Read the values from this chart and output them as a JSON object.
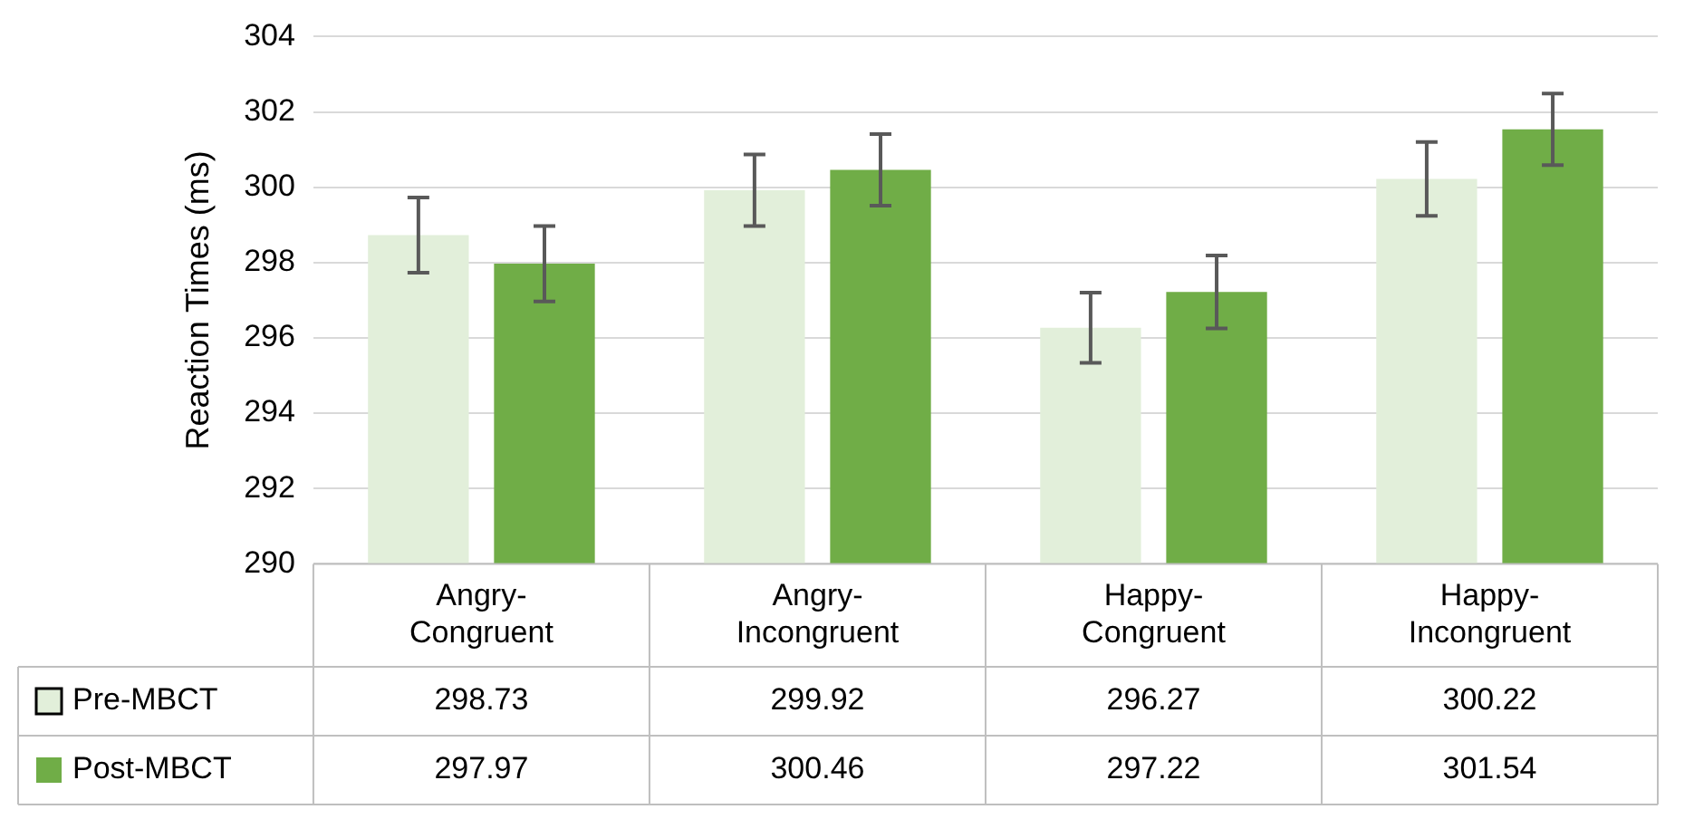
{
  "chart_data": {
    "type": "bar",
    "ylabel": "Reaction Times (ms)",
    "categories": [
      "Angry-Congruent",
      "Angry-Incongruent",
      "Happy-Congruent",
      "Happy-Incongruent"
    ],
    "series": [
      {
        "name": "Pre-MBCT",
        "color": "#e2efda",
        "values": [
          298.73,
          299.92,
          296.27,
          300.22
        ],
        "errors": [
          1.0,
          0.95,
          0.93,
          0.98
        ]
      },
      {
        "name": "Post-MBCT",
        "color": "#70ad47",
        "values": [
          297.97,
          300.46,
          297.22,
          301.54
        ],
        "errors": [
          1.0,
          0.95,
          0.97,
          0.95
        ]
      }
    ],
    "ylim": [
      290,
      304
    ],
    "yticks": [
      290,
      292,
      294,
      296,
      298,
      300,
      302,
      304
    ],
    "grid": "y",
    "legend": "bottom left",
    "data_labels": true
  }
}
